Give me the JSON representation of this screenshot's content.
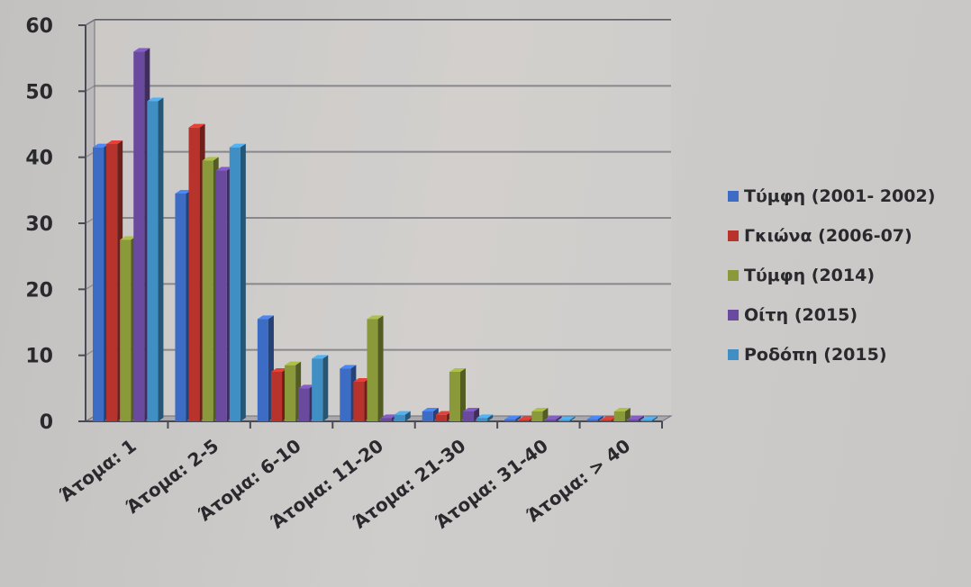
{
  "chart_data": {
    "type": "bar",
    "categories": [
      "Άτομα: 1",
      "Άτομα: 2-5",
      "Άτομα: 6-10",
      "Άτομα: 11-20",
      "Άτομα: 21-30",
      "Άτομα: 31-40",
      "Άτομα: > 40"
    ],
    "series": [
      {
        "name": "Τύμφη (2001- 2002)",
        "color": "#3d6cc4",
        "values": [
          41.5,
          34.5,
          15.5,
          8.0,
          1.5,
          0.3,
          0.3
        ]
      },
      {
        "name": "Γκιώνα (2006-07)",
        "color": "#b8332c",
        "values": [
          42.0,
          44.5,
          7.5,
          6.0,
          1.0,
          0.2,
          0.2
        ]
      },
      {
        "name": "Τύμφη (2014)",
        "color": "#8a9a3a",
        "values": [
          27.5,
          39.5,
          8.5,
          15.5,
          7.5,
          1.5,
          1.5
        ]
      },
      {
        "name": "Οίτη (2015)",
        "color": "#6a4a9e",
        "values": [
          56.0,
          38.0,
          5.0,
          0.5,
          1.5,
          0.3,
          0.3
        ]
      },
      {
        "name": "Ροδόπη (2015)",
        "color": "#3f8fc4",
        "values": [
          48.5,
          41.5,
          9.5,
          1.0,
          0.5,
          0.2,
          0.2
        ]
      }
    ],
    "ylim": [
      0,
      60
    ],
    "yticks": [
      0,
      10,
      20,
      30,
      40,
      50,
      60
    ],
    "title": "",
    "xlabel": "",
    "ylabel": "",
    "grid": true,
    "legend": "right"
  }
}
